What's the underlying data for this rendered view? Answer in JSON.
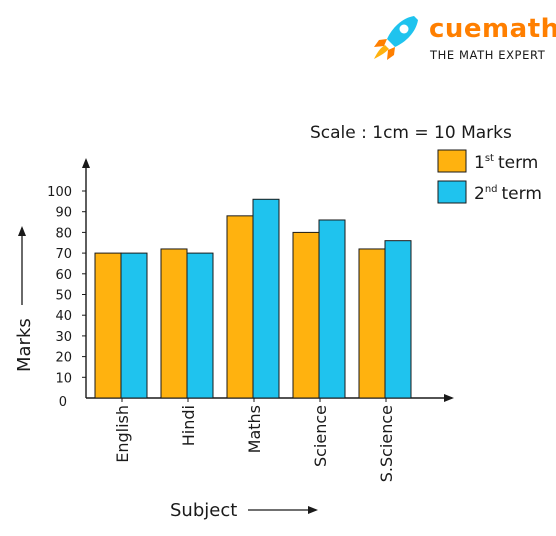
{
  "brand": {
    "name": "cuemath",
    "tagline": "THE MATH EXPERT"
  },
  "colors": {
    "series1": "#ffb20f",
    "series2": "#1fc3ee",
    "axis": "#1a1a1a",
    "brand": "#ff7f00"
  },
  "chart_data": {
    "type": "bar",
    "scale_note": "Scale : 1cm = 10 Marks",
    "categories": [
      "English",
      "Hindi",
      "Maths",
      "Science",
      "S.Science"
    ],
    "series": [
      {
        "name": "1st term",
        "name_base": "1",
        "name_sup": "st",
        "name_rest": "term",
        "values": [
          70,
          72,
          88,
          80,
          72
        ]
      },
      {
        "name": "2nd term",
        "name_base": "2",
        "name_sup": "nd",
        "name_rest": "term",
        "values": [
          70,
          70,
          96,
          86,
          76
        ]
      }
    ],
    "yticks": [
      0,
      10,
      20,
      30,
      40,
      50,
      60,
      70,
      80,
      90,
      100
    ],
    "ylim": [
      0,
      100
    ],
    "xlabel": "Subject",
    "ylabel": "Marks",
    "legend": "top-right",
    "grid": false
  }
}
